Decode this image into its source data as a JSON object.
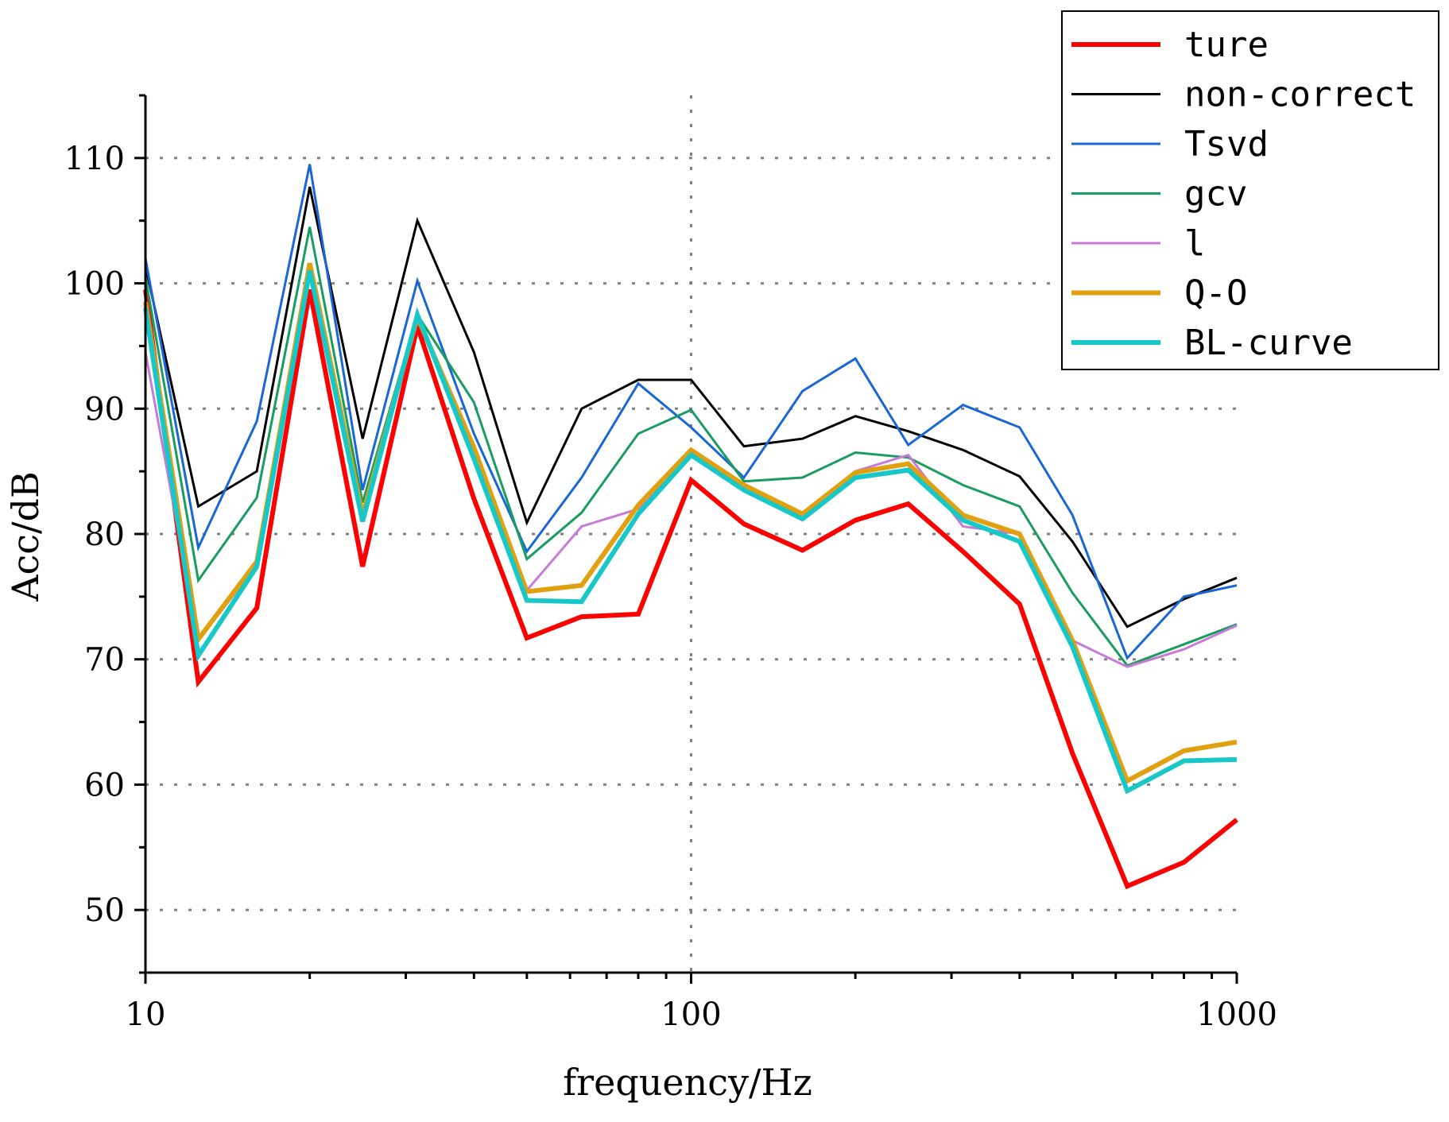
{
  "chart_data": {
    "type": "line",
    "title": "",
    "xlabel": "frequency/Hz",
    "ylabel": "Acc/dB",
    "xscale": "log",
    "xlim": [
      10,
      1000
    ],
    "ylim": [
      45,
      115
    ],
    "x_ticks": [
      10,
      100,
      1000
    ],
    "x_tick_labels": [
      "10",
      "100",
      "1000"
    ],
    "y_ticks": [
      50,
      60,
      70,
      80,
      90,
      100,
      110
    ],
    "y_tick_labels": [
      "50",
      "60",
      "70",
      "80",
      "90",
      "100",
      "110"
    ],
    "grid": true,
    "legend_position": "top-right",
    "x": [
      10,
      12.5,
      16,
      20,
      25,
      31.5,
      40,
      50,
      63,
      80,
      100,
      125,
      160,
      200,
      250,
      315,
      400,
      500,
      630,
      800,
      1000
    ],
    "series": [
      {
        "name": "ture",
        "color": "#ff0000",
        "width": 6,
        "values": [
          99.5,
          68.2,
          74.1,
          99.5,
          77.4,
          96.6,
          82.8,
          71.7,
          73.4,
          73.6,
          84.3,
          80.8,
          78.7,
          81.1,
          82.4,
          78.6,
          74.4,
          62.5,
          51.9,
          53.8,
          57.2
        ]
      },
      {
        "name": "non-correct",
        "color": "#000000",
        "width": 3,
        "values": [
          101.4,
          82.2,
          85.0,
          107.7,
          87.6,
          105.0,
          94.5,
          80.9,
          90.0,
          92.3,
          92.3,
          87.0,
          87.6,
          89.4,
          88.2,
          86.7,
          84.6,
          79.4,
          72.6,
          74.8,
          76.5
        ]
      },
      {
        "name": "Tsvd",
        "color": "#1a66d6",
        "width": 3,
        "values": [
          102.0,
          78.9,
          89.0,
          109.5,
          83.5,
          100.2,
          88.0,
          78.6,
          84.5,
          92.0,
          88.5,
          84.5,
          91.4,
          94.0,
          87.1,
          90.3,
          88.5,
          81.5,
          70.1,
          75.0,
          75.9
        ]
      },
      {
        "name": "gcv",
        "color": "#1a9c60",
        "width": 3,
        "values": [
          100.5,
          76.3,
          82.9,
          104.5,
          82.5,
          97.5,
          90.5,
          78.0,
          81.7,
          88.0,
          89.9,
          84.2,
          84.5,
          86.5,
          86.1,
          83.9,
          82.2,
          75.3,
          69.5,
          71.2,
          72.8
        ]
      },
      {
        "name": "l",
        "color": "#c77ad6",
        "width": 3,
        "values": [
          94.5,
          71.5,
          77.5,
          101.0,
          81.5,
          97.5,
          86.0,
          75.5,
          80.6,
          82.0,
          86.2,
          84.0,
          81.5,
          85.0,
          86.3,
          80.6,
          80.0,
          71.5,
          69.4,
          70.8,
          72.7
        ]
      },
      {
        "name": "Q-O",
        "color": "#e0a010",
        "width": 6,
        "values": [
          98.5,
          71.6,
          77.8,
          101.6,
          81.5,
          97.3,
          86.9,
          75.4,
          75.9,
          82.3,
          86.7,
          83.9,
          81.6,
          84.9,
          85.6,
          81.5,
          80.0,
          71.5,
          60.3,
          62.7,
          63.4
        ]
      },
      {
        "name": "BL-curve",
        "color": "#18c8c8",
        "width": 6,
        "values": [
          98.0,
          70.3,
          77.4,
          101.0,
          81.0,
          97.5,
          86.0,
          74.7,
          74.6,
          81.6,
          86.3,
          83.5,
          81.2,
          84.5,
          85.1,
          81.1,
          79.4,
          71.0,
          59.5,
          61.9,
          62.0
        ]
      }
    ]
  }
}
